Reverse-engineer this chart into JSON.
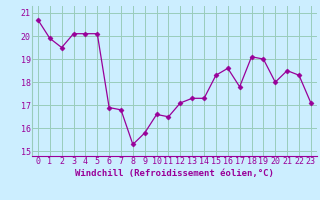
{
  "x": [
    0,
    1,
    2,
    3,
    4,
    5,
    6,
    7,
    8,
    9,
    10,
    11,
    12,
    13,
    14,
    15,
    16,
    17,
    18,
    19,
    20,
    21,
    22,
    23
  ],
  "y": [
    20.7,
    19.9,
    19.5,
    20.1,
    20.1,
    20.1,
    16.9,
    16.8,
    15.3,
    15.8,
    16.6,
    16.5,
    17.1,
    17.3,
    17.3,
    18.3,
    18.6,
    17.8,
    19.1,
    19.0,
    18.0,
    18.5,
    18.3,
    17.1
  ],
  "line_color": "#990099",
  "marker": "D",
  "marker_size": 2.5,
  "bg_color": "#cceeff",
  "grid_color": "#99ccbb",
  "xlabel": "Windchill (Refroidissement éolien,°C)",
  "ylim": [
    14.8,
    21.3
  ],
  "xlim": [
    -0.5,
    23.5
  ],
  "yticks": [
    15,
    16,
    17,
    18,
    19,
    20,
    21
  ],
  "xticks": [
    0,
    1,
    2,
    3,
    4,
    5,
    6,
    7,
    8,
    9,
    10,
    11,
    12,
    13,
    14,
    15,
    16,
    17,
    18,
    19,
    20,
    21,
    22,
    23
  ],
  "xlabel_fontsize": 6.5,
  "tick_fontsize": 6.0
}
